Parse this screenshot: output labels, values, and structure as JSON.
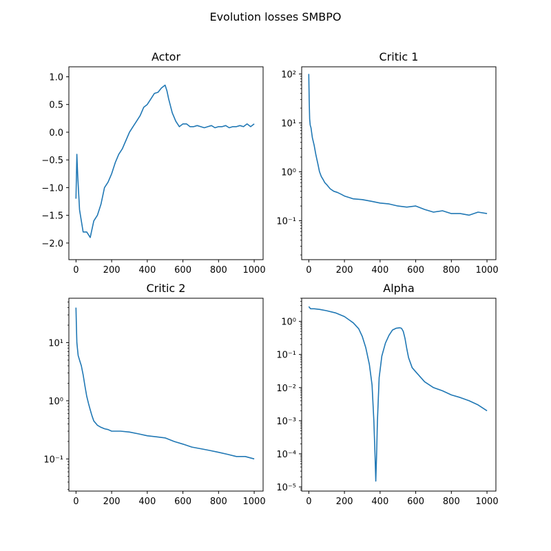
{
  "figure": {
    "title": "Evolution losses SMBPO",
    "line_color": "#1f77b4"
  },
  "chart_data": [
    {
      "type": "line",
      "title": "Actor",
      "xlabel": "",
      "ylabel": "",
      "xlim": [
        -40,
        1050
      ],
      "ylim": [
        -2.3,
        1.18
      ],
      "yscale": "linear",
      "xticks": [
        0,
        200,
        400,
        600,
        800,
        1000
      ],
      "yticks": [
        -2.0,
        -1.5,
        -1.0,
        -0.5,
        0.0,
        0.5,
        1.0
      ],
      "ytick_labels": [
        "−2.0",
        "−1.5",
        "−1.0",
        "−0.5",
        "0.0",
        "0.5",
        "1.0"
      ],
      "series": [
        {
          "x": [
            0,
            5,
            10,
            20,
            30,
            40,
            50,
            60,
            70,
            80,
            90,
            100,
            120,
            140,
            160,
            180,
            200,
            220,
            240,
            260,
            280,
            300,
            320,
            340,
            360,
            380,
            400,
            420,
            440,
            460,
            480,
            500,
            510,
            520,
            540,
            560,
            580,
            600,
            620,
            640,
            660,
            680,
            700,
            720,
            740,
            760,
            780,
            800,
            820,
            840,
            860,
            880,
            900,
            920,
            940,
            960,
            980,
            1000
          ],
          "y": [
            -1.2,
            -0.4,
            -0.8,
            -1.4,
            -1.6,
            -1.8,
            -1.8,
            -1.8,
            -1.85,
            -1.9,
            -1.75,
            -1.6,
            -1.5,
            -1.3,
            -1.0,
            -0.9,
            -0.75,
            -0.55,
            -0.4,
            -0.3,
            -0.15,
            0.0,
            0.1,
            0.2,
            0.3,
            0.45,
            0.5,
            0.6,
            0.7,
            0.72,
            0.8,
            0.85,
            0.75,
            0.6,
            0.35,
            0.2,
            0.1,
            0.15,
            0.15,
            0.1,
            0.1,
            0.12,
            0.1,
            0.08,
            0.1,
            0.12,
            0.08,
            0.1,
            0.1,
            0.12,
            0.08,
            0.1,
            0.1,
            0.12,
            0.1,
            0.15,
            0.1,
            0.15
          ]
        }
      ]
    },
    {
      "type": "line",
      "title": "Critic 1",
      "xlabel": "",
      "ylabel": "",
      "xlim": [
        -40,
        1050
      ],
      "ylim": [
        0.016,
        140
      ],
      "yscale": "log",
      "xticks": [
        0,
        200,
        400,
        600,
        800,
        1000
      ],
      "yticks": [
        0.1,
        1,
        10,
        100
      ],
      "ytick_labels": [
        "10⁻¹",
        "10⁰",
        "10¹",
        "10²"
      ],
      "series": [
        {
          "x": [
            0,
            2,
            5,
            8,
            12,
            20,
            30,
            40,
            50,
            60,
            70,
            80,
            90,
            100,
            120,
            140,
            160,
            180,
            200,
            250,
            300,
            350,
            400,
            450,
            500,
            550,
            600,
            650,
            700,
            750,
            800,
            850,
            900,
            950,
            1000
          ],
          "y": [
            100,
            30,
            12,
            9,
            8,
            5,
            3.5,
            2.2,
            1.5,
            1.0,
            0.8,
            0.7,
            0.6,
            0.55,
            0.45,
            0.4,
            0.38,
            0.35,
            0.32,
            0.28,
            0.27,
            0.25,
            0.23,
            0.22,
            0.2,
            0.19,
            0.2,
            0.17,
            0.15,
            0.16,
            0.14,
            0.14,
            0.13,
            0.15,
            0.14
          ]
        }
      ]
    },
    {
      "type": "line",
      "title": "Critic 2",
      "xlabel": "",
      "ylabel": "",
      "xlim": [
        -40,
        1050
      ],
      "ylim": [
        0.028,
        58
      ],
      "yscale": "log",
      "xticks": [
        0,
        200,
        400,
        600,
        800,
        1000
      ],
      "yticks": [
        0.1,
        1,
        10
      ],
      "ytick_labels": [
        "10⁻¹",
        "10⁰",
        "10¹"
      ],
      "series": [
        {
          "x": [
            0,
            2,
            5,
            8,
            12,
            20,
            30,
            40,
            50,
            60,
            70,
            80,
            90,
            100,
            120,
            140,
            160,
            180,
            200,
            250,
            300,
            350,
            400,
            450,
            500,
            550,
            600,
            650,
            700,
            750,
            800,
            850,
            900,
            950,
            1000
          ],
          "y": [
            40,
            20,
            10,
            8,
            6,
            5,
            4,
            2.8,
            1.8,
            1.2,
            0.9,
            0.7,
            0.55,
            0.45,
            0.38,
            0.35,
            0.33,
            0.32,
            0.3,
            0.3,
            0.29,
            0.27,
            0.25,
            0.24,
            0.23,
            0.2,
            0.18,
            0.16,
            0.15,
            0.14,
            0.13,
            0.12,
            0.11,
            0.11,
            0.1
          ]
        }
      ]
    },
    {
      "type": "line",
      "title": "Alpha",
      "xlabel": "",
      "ylabel": "",
      "xlim": [
        -40,
        1050
      ],
      "ylim": [
        7.5e-06,
        5
      ],
      "yscale": "log",
      "xticks": [
        0,
        200,
        400,
        600,
        800,
        1000
      ],
      "yticks": [
        1e-05,
        0.0001,
        0.001,
        0.01,
        0.1,
        1
      ],
      "ytick_labels": [
        "10⁻⁵",
        "10⁻⁴",
        "10⁻³",
        "10⁻²",
        "10⁻¹",
        "10⁰"
      ],
      "series": [
        {
          "x": [
            0,
            10,
            30,
            60,
            100,
            150,
            200,
            250,
            280,
            300,
            320,
            340,
            355,
            365,
            372,
            376,
            380,
            385,
            395,
            410,
            430,
            450,
            470,
            490,
            510,
            520,
            530,
            540,
            550,
            560,
            580,
            600,
            650,
            700,
            750,
            800,
            850,
            900,
            950,
            1000
          ],
          "y": [
            2.8,
            2.4,
            2.4,
            2.3,
            2.1,
            1.8,
            1.4,
            0.9,
            0.6,
            0.35,
            0.16,
            0.05,
            0.012,
            0.001,
            8e-05,
            1.5e-05,
            8e-05,
            0.001,
            0.02,
            0.09,
            0.22,
            0.38,
            0.55,
            0.62,
            0.64,
            0.62,
            0.5,
            0.3,
            0.15,
            0.08,
            0.04,
            0.03,
            0.015,
            0.01,
            0.008,
            0.006,
            0.005,
            0.004,
            0.003,
            0.002
          ]
        }
      ]
    }
  ]
}
